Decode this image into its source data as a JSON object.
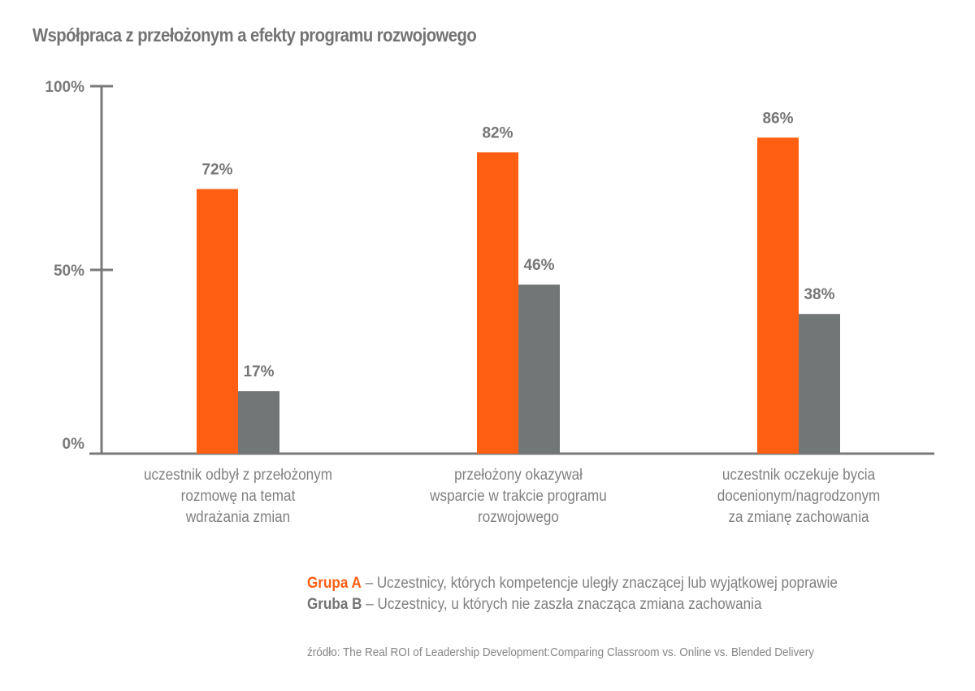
{
  "chart_data": {
    "type": "bar",
    "title": "Współpraca z przełożonym a efekty programu rozwojowego",
    "xlabel": "",
    "ylabel": "",
    "ylim": [
      0,
      100
    ],
    "yticks": [
      0,
      50,
      100
    ],
    "ytick_labels": [
      "0%",
      "50%",
      "100%"
    ],
    "grid": false,
    "categories": [
      "uczestnik odbył z przełożonym\nrozmowę na temat\nwdrażania zmian",
      "przełożony okazywał\nwsparcie w trakcie programu\nrozwojowego",
      "uczestnik oczekuje bycia\ndocenionym/nagrodzonym\nza zmianę zachowania"
    ],
    "series": [
      {
        "name": "Grupa A",
        "color": "#FF5F12",
        "values": [
          72,
          82,
          86
        ],
        "labels": [
          "72%",
          "82%",
          "86%"
        ]
      },
      {
        "name": "Gruba B",
        "color": "#737676",
        "values": [
          17,
          46,
          38
        ],
        "labels": [
          "17%",
          "46%",
          "38%"
        ]
      }
    ],
    "legend_placement": "bottom-right"
  },
  "legend": [
    {
      "key": "Grupa A",
      "color": "#FF5F12",
      "text": " – Uczestnicy, których kompetencje uległy znaczącej lub wyjątkowej poprawie"
    },
    {
      "key": "Gruba B",
      "color": "#737373",
      "text": " – Uczestnicy, u których nie zaszła znacząca zmiana zachowania"
    }
  ],
  "source": "źródło: The Real ROI of Leadership Development:Comparing Classroom vs. Online vs. Blended Delivery",
  "colors": {
    "axis": "#7a7a7a",
    "text": "#757575"
  }
}
